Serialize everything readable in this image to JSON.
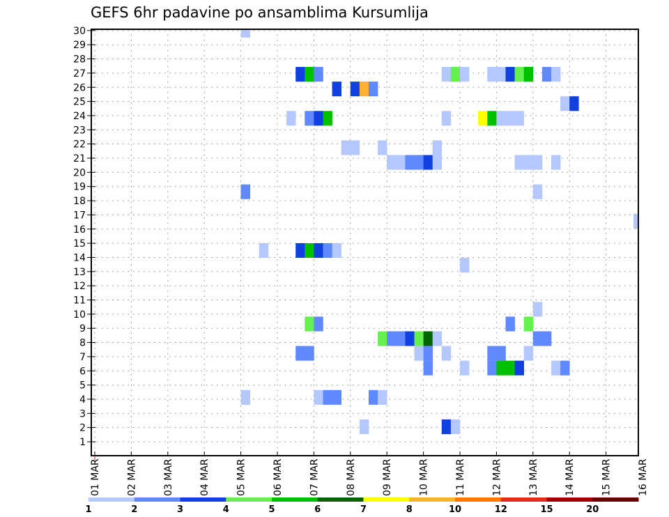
{
  "chart_data": {
    "type": "heatmap",
    "title": "GEFS 6hr padavine po ansamblima Kursumlija",
    "xlabel": "",
    "ylabel": "",
    "x_unit": "6-hour step from 01 MAR 00z",
    "x_tick_labels": [
      "01 MAR",
      "02 MAR",
      "03 MAR",
      "04 MAR",
      "05 MAR",
      "06 MAR",
      "07 MAR",
      "08 MAR",
      "09 MAR",
      "10 MAR",
      "11 MAR",
      "12 MAR",
      "13 MAR",
      "14 MAR",
      "15 MAR",
      "16 MAR"
    ],
    "y_tick_labels": [
      "1",
      "2",
      "3",
      "4",
      "5",
      "6",
      "7",
      "8",
      "9",
      "10",
      "11",
      "12",
      "13",
      "14",
      "15",
      "16",
      "17",
      "18",
      "19",
      "20",
      "21",
      "22",
      "23",
      "24",
      "25",
      "26",
      "27",
      "28",
      "29",
      "30"
    ],
    "ylim": [
      1,
      30
    ],
    "grid": true,
    "legend_position": "bottom",
    "levels": [
      {
        "label": "1",
        "color": "#b4c8ff"
      },
      {
        "label": "2",
        "color": "#6088ff"
      },
      {
        "label": "3",
        "color": "#1040e0"
      },
      {
        "label": "4",
        "color": "#66f050"
      },
      {
        "label": "5",
        "color": "#00c000"
      },
      {
        "label": "6",
        "color": "#006400"
      },
      {
        "label": "7",
        "color": "#ffff00"
      },
      {
        "label": "8",
        "color": "#ffb030"
      },
      {
        "label": "10",
        "color": "#ff7800"
      },
      {
        "label": "12",
        "color": "#e03010"
      },
      {
        "label": "15",
        "color": "#a00000"
      },
      {
        "label": "20",
        "color": "#700000"
      }
    ],
    "cells_format": [
      "member",
      "step",
      "level_index"
    ],
    "cells": [
      [
        30,
        17,
        0
      ],
      [
        27,
        23,
        2
      ],
      [
        27,
        24,
        4
      ],
      [
        27,
        25,
        1
      ],
      [
        27,
        39,
        0
      ],
      [
        27,
        40,
        3
      ],
      [
        27,
        41,
        0
      ],
      [
        27,
        44,
        0
      ],
      [
        27,
        45,
        0
      ],
      [
        27,
        46,
        2
      ],
      [
        27,
        47,
        3
      ],
      [
        27,
        48,
        4
      ],
      [
        27,
        50,
        1
      ],
      [
        27,
        51,
        0
      ],
      [
        26,
        27,
        2
      ],
      [
        26,
        29,
        2
      ],
      [
        26,
        30,
        7
      ],
      [
        26,
        31,
        1
      ],
      [
        25,
        52,
        0
      ],
      [
        25,
        53,
        2
      ],
      [
        24,
        22,
        0
      ],
      [
        24,
        24,
        1
      ],
      [
        24,
        25,
        2
      ],
      [
        24,
        26,
        4
      ],
      [
        24,
        39,
        0
      ],
      [
        24,
        43,
        6
      ],
      [
        24,
        44,
        4
      ],
      [
        24,
        45,
        0
      ],
      [
        24,
        46,
        0
      ],
      [
        24,
        47,
        0
      ],
      [
        22,
        28,
        0
      ],
      [
        22,
        29,
        0
      ],
      [
        22,
        32,
        0
      ],
      [
        22,
        38,
        0
      ],
      [
        21,
        33,
        0
      ],
      [
        21,
        34,
        0
      ],
      [
        21,
        35,
        1
      ],
      [
        21,
        36,
        1
      ],
      [
        21,
        37,
        2
      ],
      [
        21,
        38,
        0
      ],
      [
        21,
        47,
        0
      ],
      [
        21,
        48,
        0
      ],
      [
        21,
        49,
        0
      ],
      [
        21,
        51,
        0
      ],
      [
        19,
        17,
        1
      ],
      [
        19,
        49,
        0
      ],
      [
        17,
        60,
        0
      ],
      [
        15,
        19,
        0
      ],
      [
        15,
        23,
        2
      ],
      [
        15,
        24,
        4
      ],
      [
        15,
        25,
        2
      ],
      [
        15,
        26,
        1
      ],
      [
        15,
        27,
        0
      ],
      [
        14,
        41,
        0
      ],
      [
        11,
        49,
        0
      ],
      [
        10,
        24,
        3
      ],
      [
        10,
        25,
        1
      ],
      [
        10,
        46,
        1
      ],
      [
        10,
        48,
        3
      ],
      [
        9,
        32,
        3
      ],
      [
        9,
        33,
        1
      ],
      [
        9,
        34,
        1
      ],
      [
        9,
        35,
        2
      ],
      [
        9,
        36,
        3
      ],
      [
        9,
        37,
        5
      ],
      [
        9,
        38,
        0
      ],
      [
        9,
        49,
        1
      ],
      [
        9,
        50,
        1
      ],
      [
        8,
        23,
        1
      ],
      [
        8,
        24,
        1
      ],
      [
        8,
        36,
        0
      ],
      [
        8,
        37,
        1
      ],
      [
        8,
        39,
        0
      ],
      [
        8,
        44,
        1
      ],
      [
        8,
        45,
        1
      ],
      [
        8,
        48,
        0
      ],
      [
        7,
        37,
        1
      ],
      [
        7,
        41,
        0
      ],
      [
        7,
        44,
        1
      ],
      [
        7,
        45,
        4
      ],
      [
        7,
        46,
        4
      ],
      [
        7,
        47,
        2
      ],
      [
        7,
        51,
        0
      ],
      [
        7,
        52,
        1
      ],
      [
        5,
        17,
        0
      ],
      [
        5,
        25,
        0
      ],
      [
        5,
        26,
        1
      ],
      [
        5,
        27,
        1
      ],
      [
        5,
        31,
        1
      ],
      [
        5,
        32,
        0
      ],
      [
        3,
        30,
        0
      ],
      [
        3,
        39,
        2
      ],
      [
        3,
        40,
        0
      ]
    ]
  }
}
